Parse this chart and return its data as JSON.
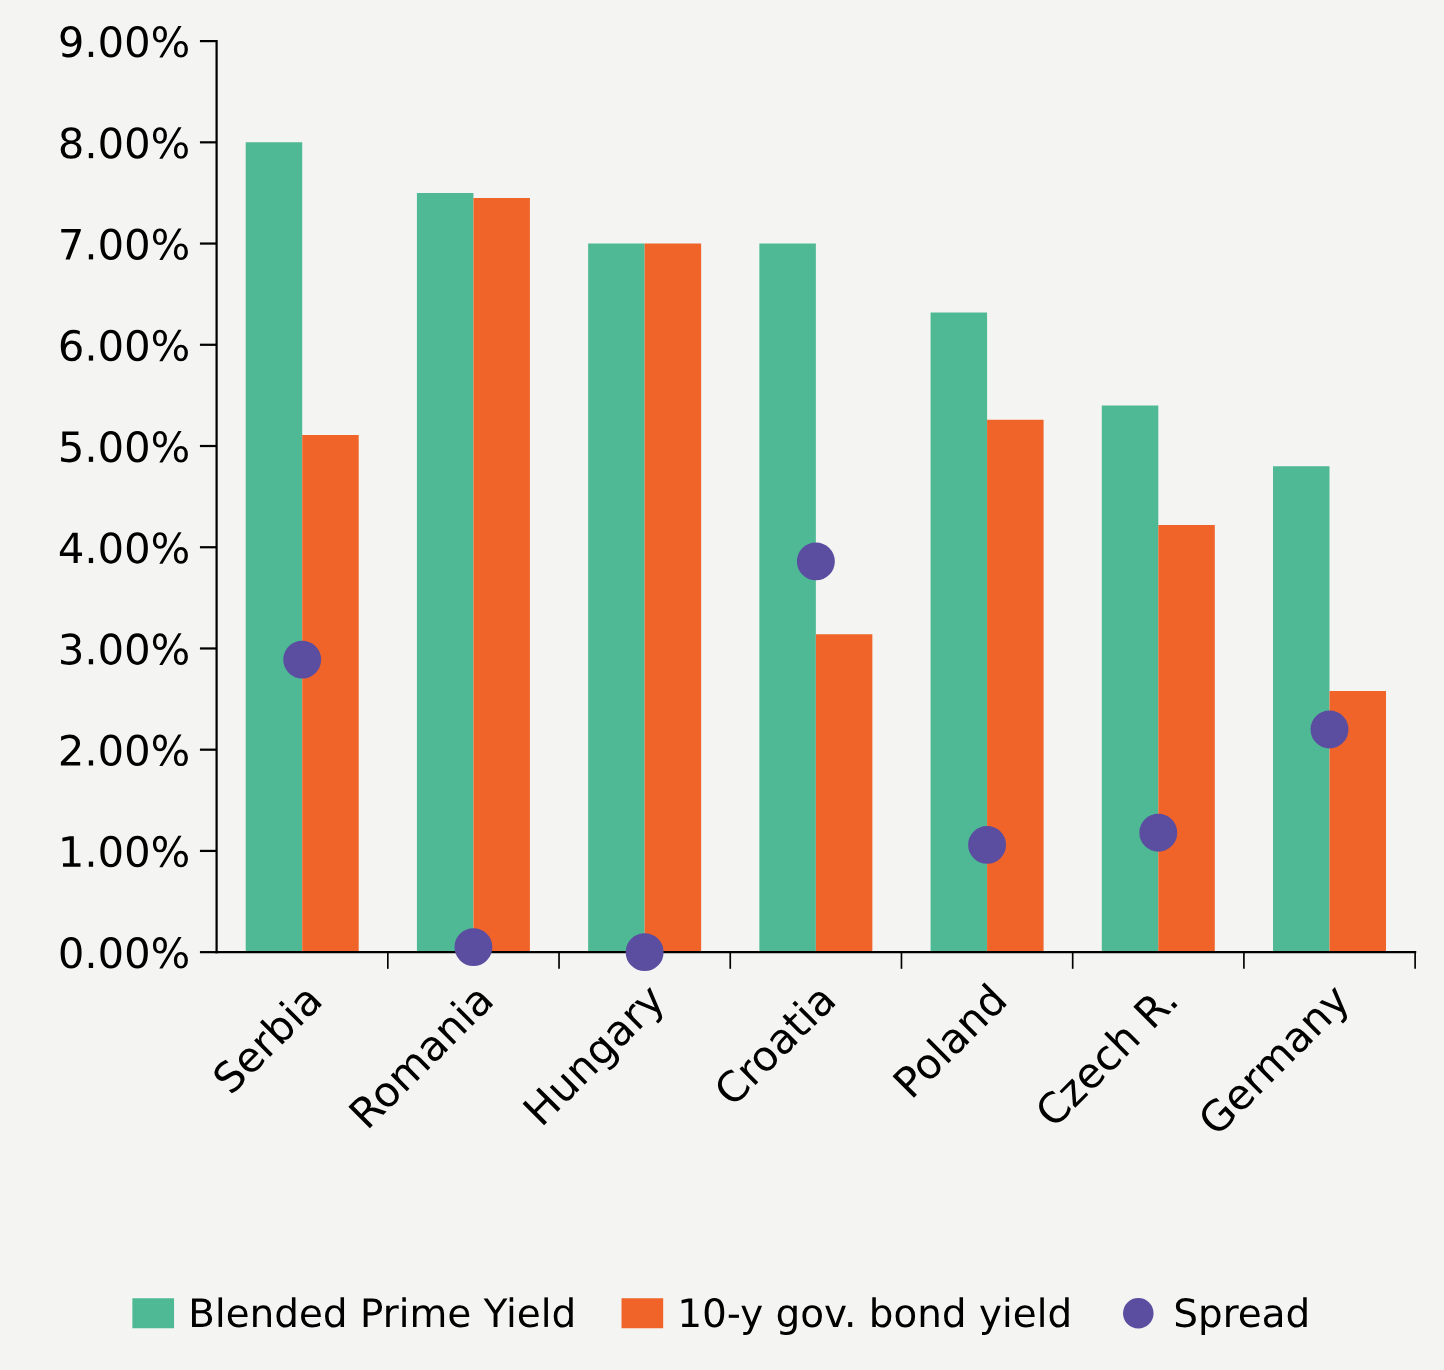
{
  "chart_data": {
    "type": "bar",
    "categories": [
      "Serbia",
      "Romania",
      "Hungary",
      "Croatia",
      "Poland",
      "Czech R.",
      "Germany"
    ],
    "series": [
      {
        "name": "Blended Prime Yield",
        "color": "#4fb996",
        "values": [
          8.0,
          7.5,
          7.0,
          7.0,
          6.32,
          5.4,
          4.8
        ]
      },
      {
        "name": "10-y gov. bond yield",
        "color": "#f0642a",
        "values": [
          5.11,
          7.45,
          7.0,
          3.14,
          5.26,
          4.22,
          2.58
        ]
      },
      {
        "name": "Spread",
        "type": "scatter",
        "color": "#5b4ea0",
        "values": [
          2.89,
          0.05,
          0.0,
          3.86,
          1.06,
          1.18,
          2.2
        ]
      }
    ],
    "ylim": [
      0,
      9
    ],
    "yticks": [
      {
        "value": 0,
        "label": "0.00%"
      },
      {
        "value": 1,
        "label": "1.00%"
      },
      {
        "value": 2,
        "label": "2.00%"
      },
      {
        "value": 3,
        "label": "3.00%"
      },
      {
        "value": 4,
        "label": "4.00%"
      },
      {
        "value": 5,
        "label": "5.00%"
      },
      {
        "value": 6,
        "label": "6.00%"
      },
      {
        "value": 7,
        "label": "7.00%"
      },
      {
        "value": 8,
        "label": "8.00%"
      },
      {
        "value": 9,
        "label": "9.00%"
      }
    ],
    "grid": false,
    "legend": "bottom",
    "marker": "circle"
  }
}
